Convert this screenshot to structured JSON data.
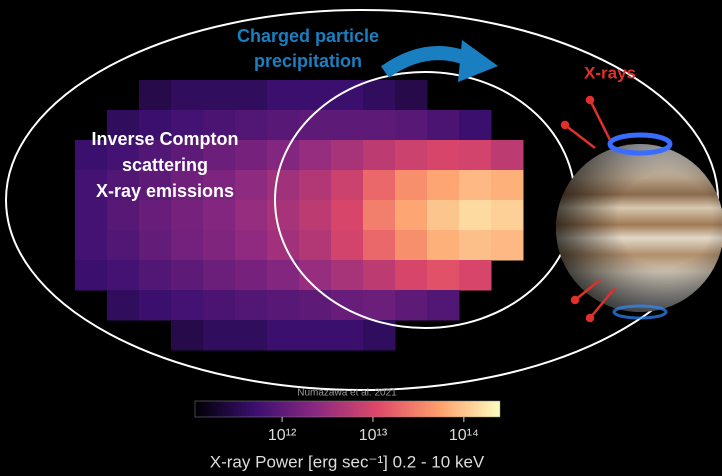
{
  "labels": {
    "precipitation": [
      "Charged particle",
      "precipitation"
    ],
    "xrays": "X-rays",
    "inverse_compton": [
      "Inverse Compton",
      "scattering",
      "X-ray emissions"
    ]
  },
  "heatmap": {
    "values": [
      [
        null,
        null,
        300000000000.0,
        400000000000.0,
        400000000000.0,
        400000000000.0,
        500000000000.0,
        500000000000.0,
        500000000000.0,
        400000000000.0,
        300000000000.0,
        null,
        null,
        null
      ],
      [
        null,
        400000000000.0,
        500000000000.0,
        600000000000.0,
        700000000000.0,
        800000000000.0,
        900000000000.0,
        1000000000000.0,
        1000000000000.0,
        1000000000000.0,
        900000000000.0,
        700000000000.0,
        500000000000.0,
        null
      ],
      [
        500000000000.0,
        600000000000.0,
        800000000000.0,
        1000000000000.0,
        1300000000000.0,
        1600000000000.0,
        2000000000000.0,
        3000000000000.0,
        4000000000000.0,
        6000000000000.0,
        8000000000000.0,
        10000000000000.0,
        9000000000000.0,
        6000000000000.0
      ],
      [
        600000000000.0,
        800000000000.0,
        1000000000000.0,
        1400000000000.0,
        1800000000000.0,
        2500000000000.0,
        3500000000000.0,
        5000000000000.0,
        8000000000000.0,
        20000000000000.0,
        40000000000000.0,
        60000000000000.0,
        80000000000000.0,
        70000000000000.0
      ],
      [
        600000000000.0,
        900000000000.0,
        1200000000000.0,
        1600000000000.0,
        2000000000000.0,
        3000000000000.0,
        4000000000000.0,
        6000000000000.0,
        10000000000000.0,
        30000000000000.0,
        60000000000000.0,
        100000000000000.0,
        140000000000000.0,
        120000000000000.0
      ],
      [
        600000000000.0,
        800000000000.0,
        1100000000000.0,
        1500000000000.0,
        1900000000000.0,
        2600000000000.0,
        3600000000000.0,
        5000000000000.0,
        9000000000000.0,
        20000000000000.0,
        40000000000000.0,
        70000000000000.0,
        90000000000000.0,
        80000000000000.0
      ],
      [
        500000000000.0,
        600000000000.0,
        800000000000.0,
        1000000000000.0,
        1300000000000.0,
        1600000000000.0,
        2000000000000.0,
        3000000000000.0,
        4000000000000.0,
        6000000000000.0,
        10000000000000.0,
        13000000000000.0,
        10000000000000.0,
        null
      ],
      [
        null,
        400000000000.0,
        500000000000.0,
        600000000000.0,
        700000000000.0,
        800000000000.0,
        900000000000.0,
        1000000000000.0,
        1200000000000.0,
        1300000000000.0,
        1000000000000.0,
        800000000000.0,
        null,
        null
      ],
      [
        null,
        null,
        null,
        300000000000.0,
        400000000000.0,
        400000000000.0,
        500000000000.0,
        500000000000.0,
        500000000000.0,
        400000000000.0,
        null,
        null,
        null,
        null
      ]
    ]
  },
  "colorbar": {
    "credit": "Numazawa et al. 2021",
    "log_scale": true,
    "lim": [
      110000000000.0,
      250000000000000.0
    ],
    "ticks": [
      {
        "value": 1000000000000.0,
        "label": "10¹²"
      },
      {
        "value": 10000000000000.0,
        "label": "10¹³"
      },
      {
        "value": 100000000000000.0,
        "label": "10¹⁴"
      }
    ],
    "label": "X-ray Power [erg sec⁻¹] 0.2 - 10 keV",
    "colors": [
      "#000004",
      "#3b0f70",
      "#8c2981",
      "#de4968",
      "#fe9f6d",
      "#fcfdbf"
    ]
  }
}
